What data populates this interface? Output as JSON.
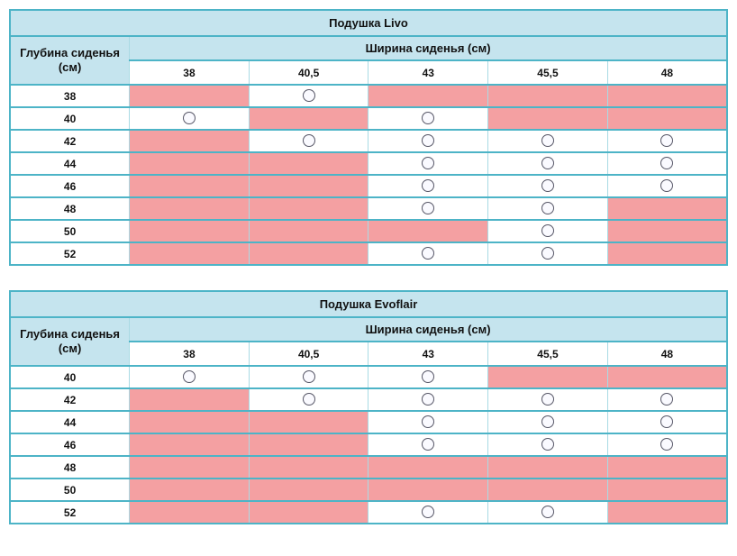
{
  "colors": {
    "header_blue": "#c5e4ee",
    "unavailable_pink": "#f4a0a2",
    "border_teal": "#4db4c7",
    "grid_light": "#a9dae4",
    "circle_stroke": "#565666",
    "circle_fill": "#fafaff",
    "text": "#111111"
  },
  "markers": {
    "available_icon": "circle-outline-icon",
    "unavailable": "pink-filled-cell"
  },
  "width_columns": [
    "38",
    "40,5",
    "43",
    "45,5",
    "48"
  ],
  "tables": [
    {
      "title": "Подушка Livo",
      "depth_header": "Глубина сиденья (см)",
      "width_header": "Ширина сиденья (см)",
      "rows": [
        {
          "depth": "38",
          "cells": [
            "no",
            "ok",
            "no",
            "no",
            "no"
          ]
        },
        {
          "depth": "40",
          "cells": [
            "ok",
            "no",
            "ok",
            "no",
            "no"
          ]
        },
        {
          "depth": "42",
          "cells": [
            "no",
            "ok",
            "ok",
            "ok",
            "ok"
          ]
        },
        {
          "depth": "44",
          "cells": [
            "no",
            "no",
            "ok",
            "ok",
            "ok"
          ]
        },
        {
          "depth": "46",
          "cells": [
            "no",
            "no",
            "ok",
            "ok",
            "ok"
          ]
        },
        {
          "depth": "48",
          "cells": [
            "no",
            "no",
            "ok",
            "ok",
            "no"
          ]
        },
        {
          "depth": "50",
          "cells": [
            "no",
            "no",
            "no",
            "ok",
            "no"
          ]
        },
        {
          "depth": "52",
          "cells": [
            "no",
            "no",
            "ok",
            "ok",
            "no"
          ]
        }
      ]
    },
    {
      "title": "Подушка Evoflair",
      "depth_header": "Глубина сиденья (см)",
      "width_header": "Ширина сиденья (см)",
      "rows": [
        {
          "depth": "40",
          "cells": [
            "ok",
            "ok",
            "ok",
            "no",
            "no"
          ]
        },
        {
          "depth": "42",
          "cells": [
            "no",
            "ok",
            "ok",
            "ok",
            "ok"
          ]
        },
        {
          "depth": "44",
          "cells": [
            "no",
            "no",
            "ok",
            "ok",
            "ok"
          ]
        },
        {
          "depth": "46",
          "cells": [
            "no",
            "no",
            "ok",
            "ok",
            "ok"
          ]
        },
        {
          "depth": "48",
          "cells": [
            "no",
            "no",
            "no",
            "no",
            "no"
          ]
        },
        {
          "depth": "50",
          "cells": [
            "no",
            "no",
            "no",
            "no",
            "no"
          ]
        },
        {
          "depth": "52",
          "cells": [
            "no",
            "no",
            "ok",
            "ok",
            "no"
          ]
        }
      ]
    }
  ]
}
